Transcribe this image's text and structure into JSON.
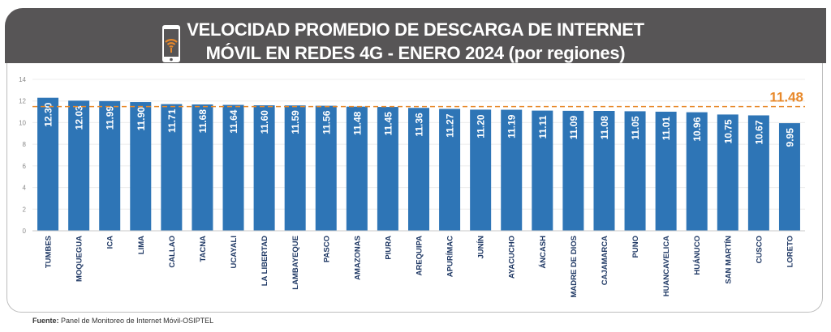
{
  "header": {
    "title_line1": "VELOCIDAD PROMEDIO DE DESCARGA DE INTERNET",
    "title_line2": "MÓVIL EN REDES 4G - ENERO 2024 (por regiones)",
    "icon": "mobile-phone-wifi-icon"
  },
  "source": {
    "label": "Fuente:",
    "text": "Panel de Monitoreo de Internet Móvil-OSIPTEL"
  },
  "colors": {
    "bar": "#2E75B6",
    "average": "#E8892B",
    "header": "#575556",
    "category_label": "#1F3864"
  },
  "chart_data": {
    "type": "bar",
    "title": "VELOCIDAD PROMEDIO DE DESCARGA DE INTERNET MÓVIL EN REDES 4G - ENERO 2024 (por regiones)",
    "categories": [
      "TUMBES",
      "MOQUEGUA",
      "ICA",
      "LIMA",
      "CALLAO",
      "TACNA",
      "UCAYALI",
      "LA LIBERTAD",
      "LAMBAYEQUE",
      "PASCO",
      "AMAZONAS",
      "PIURA",
      "AREQUIPA",
      "APURÍMAC",
      "JUNÍN",
      "AYACUCHO",
      "ÁNCASH",
      "MADRE DE DIOS",
      "CAJAMARCA",
      "PUNO",
      "HUANCAVELICA",
      "HUÁNUCO",
      "SAN MARTÍN",
      "CUSCO",
      "LORETO"
    ],
    "values": [
      12.3,
      12.03,
      11.99,
      11.9,
      11.71,
      11.68,
      11.64,
      11.6,
      11.59,
      11.56,
      11.48,
      11.45,
      11.36,
      11.27,
      11.2,
      11.19,
      11.11,
      11.09,
      11.08,
      11.05,
      11.01,
      10.96,
      10.75,
      10.67,
      9.95
    ],
    "value_labels": [
      "12.30",
      "12.03",
      "11.99",
      "11.90",
      "11.71",
      "11.68",
      "11.64",
      "11.60",
      "11.59",
      "11.56",
      "11.48",
      "11.45",
      "11.36",
      "11.27",
      "11.20",
      "11.19",
      "11.11",
      "11.09",
      "11.08",
      "11.05",
      "11.01",
      "10.96",
      "10.75",
      "10.67",
      "9.95"
    ],
    "average": {
      "value": 11.48,
      "label": "11.48",
      "style": "dashed"
    },
    "yticks": [
      "0",
      "2",
      "4",
      "6",
      "8",
      "10",
      "12",
      "14"
    ],
    "ylim": [
      0,
      14
    ],
    "xlabel": "",
    "ylabel": "",
    "grid": true,
    "legend": "none"
  }
}
